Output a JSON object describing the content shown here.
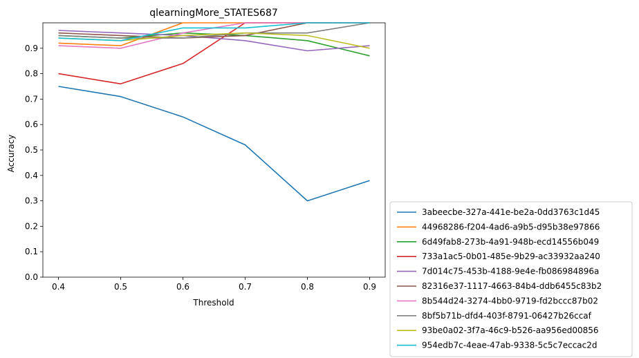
{
  "chart_data": {
    "type": "line",
    "title": "qlearningMore_STATES687",
    "xlabel": "Threshold",
    "ylabel": "Accuracy",
    "x": [
      0.4,
      0.5,
      0.6,
      0.7,
      0.8,
      0.9
    ],
    "x_ticks": [
      "0.4",
      "0.5",
      "0.6",
      "0.7",
      "0.8",
      "0.9"
    ],
    "y_ticks": [
      "0.0",
      "0.1",
      "0.2",
      "0.3",
      "0.4",
      "0.5",
      "0.6",
      "0.7",
      "0.8",
      "0.9"
    ],
    "xlim": [
      0.375,
      0.925
    ],
    "ylim": [
      0.0,
      1.0
    ],
    "grid": false,
    "legend_position": "outside-right-bottom",
    "series": [
      {
        "name": "3abeecbe-327a-441e-be2a-0dd3763c1d45",
        "color": "#1f77b4",
        "values": [
          0.75,
          0.71,
          0.63,
          0.52,
          0.3,
          0.38
        ]
      },
      {
        "name": "44968286-f204-4ad6-a9b5-d95b38e97866",
        "color": "#ff7f0e",
        "values": [
          0.92,
          0.91,
          1.0,
          1.0,
          1.0,
          1.0
        ]
      },
      {
        "name": "6d49fab8-273b-4a91-948b-ecd14556b049",
        "color": "#2ca02c",
        "values": [
          0.95,
          0.94,
          0.96,
          0.95,
          0.93,
          0.87
        ]
      },
      {
        "name": "733a1ac5-0b01-485e-9b29-ac33932aa240",
        "color": "#d62728",
        "values": [
          0.8,
          0.76,
          0.84,
          1.0,
          1.0,
          1.0
        ]
      },
      {
        "name": "7d014c75-453b-4188-9e4e-fb086984896a",
        "color": "#9467bd",
        "values": [
          0.97,
          0.96,
          0.95,
          0.93,
          0.89,
          0.91
        ]
      },
      {
        "name": "82316e37-1117-4663-84b4-ddb6455c83b2",
        "color": "#8c564b",
        "values": [
          0.96,
          0.95,
          0.94,
          0.95,
          1.0,
          1.0
        ]
      },
      {
        "name": "8b544d24-3274-4bb0-9719-fd2bccc87b02",
        "color": "#e377c2",
        "values": [
          0.91,
          0.9,
          0.96,
          1.0,
          1.0,
          1.0
        ]
      },
      {
        "name": "8bf5b71b-dfd4-403f-8791-06427b26ccaf",
        "color": "#7f7f7f",
        "values": [
          0.95,
          0.94,
          0.94,
          0.96,
          0.96,
          1.0
        ]
      },
      {
        "name": "93be0a02-3f7a-46c9-b526-aa956ed00856",
        "color": "#bcbd22",
        "values": [
          0.94,
          0.93,
          0.95,
          0.96,
          0.95,
          0.9
        ]
      },
      {
        "name": "954edb7c-4eae-47ab-9338-5c5c7eccac2d",
        "color": "#17becf",
        "values": [
          0.94,
          0.93,
          0.98,
          0.98,
          1.0,
          1.0
        ]
      }
    ]
  }
}
